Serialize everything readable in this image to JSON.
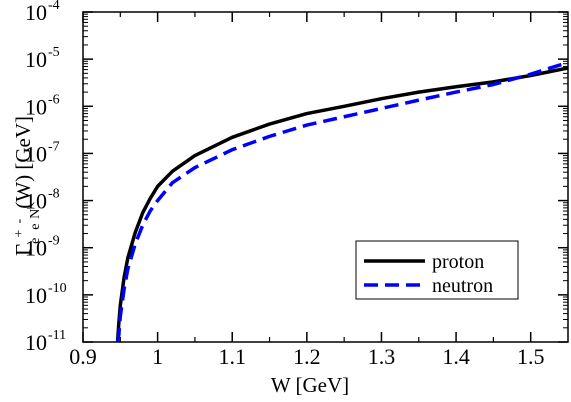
{
  "chart_data": {
    "type": "line",
    "xlabel": "W [GeV]",
    "ylabel": {
      "main": "Γ",
      "sub_e1": "e",
      "sup_plus": "+",
      "sub_e2": "e",
      "sup_minus": "-",
      "sub_n": "N",
      "rest": "(W) [GeV]"
    },
    "xlim": [
      0.9,
      1.55
    ],
    "ylim_log10": [
      -11,
      -4
    ],
    "y_scale": "log",
    "x_ticks": [
      "0.9",
      "1",
      "1.1",
      "1.2",
      "1.3",
      "1.4",
      "1.5"
    ],
    "x_tick_values": [
      0.9,
      1.0,
      1.1,
      1.2,
      1.3,
      1.4,
      1.5
    ],
    "y_tick_base": "10",
    "y_tick_exponents": [
      "-11",
      "-10",
      "-9",
      "-8",
      "-7",
      "-6",
      "-5",
      "-4"
    ],
    "y_tick_values": [
      -11,
      -10,
      -9,
      -8,
      -7,
      -6,
      -5,
      -4
    ],
    "legend_position": "lower-right",
    "series": [
      {
        "name": "proton",
        "color": "#000000",
        "dash": "solid",
        "x": [
          0.9463,
          0.948,
          0.95,
          0.955,
          0.96,
          0.97,
          0.98,
          0.99,
          1.0,
          1.02,
          1.05,
          1.1,
          1.15,
          1.2,
          1.25,
          1.3,
          1.35,
          1.4,
          1.45,
          1.5,
          1.55
        ],
        "y": [
          1e-11,
          2.5e-11,
          6e-11,
          2.3e-10,
          6e-10,
          2.1e-09,
          5.5e-09,
          1.1e-08,
          2e-08,
          4.2e-08,
          9e-08,
          2.2e-07,
          4.2e-07,
          7e-07,
          1e-06,
          1.45e-06,
          2e-06,
          2.6e-06,
          3.3e-06,
          4.5e-06,
          6.5e-06
        ]
      },
      {
        "name": "neutron",
        "color": "#0000ff",
        "dash": "dashed",
        "x": [
          0.9463,
          0.948,
          0.95,
          0.955,
          0.96,
          0.97,
          0.98,
          0.99,
          1.0,
          1.02,
          1.05,
          1.1,
          1.15,
          1.2,
          1.25,
          1.3,
          1.35,
          1.4,
          1.45,
          1.5,
          1.55
        ],
        "y": [
          1e-11,
          1.4e-11,
          3.5e-11,
          1.3e-10,
          3.5e-10,
          1.2e-09,
          3e-09,
          6e-09,
          1e-08,
          2.4e-08,
          5e-08,
          1.2e-07,
          2.3e-07,
          4e-07,
          6e-07,
          9e-07,
          1.35e-06,
          2e-06,
          2.9e-06,
          4.8e-06,
          8.5e-06
        ]
      }
    ]
  }
}
